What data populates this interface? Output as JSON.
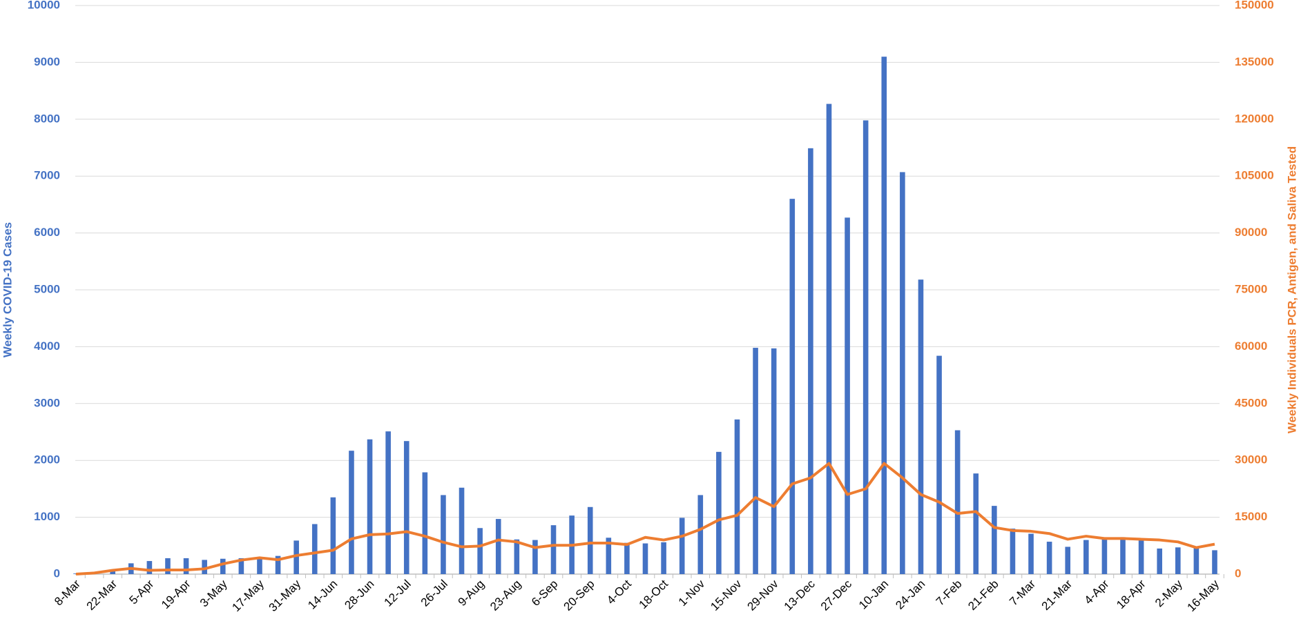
{
  "chart_data": {
    "type": "bar",
    "categories": [
      "8-Mar",
      null,
      "22-Mar",
      null,
      "5-Apr",
      null,
      "19-Apr",
      null,
      "3-May",
      null,
      "17-May",
      null,
      "31-May",
      null,
      "14-Jun",
      null,
      "28-Jun",
      null,
      "12-Jul",
      null,
      "26-Jul",
      null,
      "9-Aug",
      null,
      "23-Aug",
      null,
      "6-Sep",
      null,
      "20-Sep",
      null,
      "4-Oct",
      null,
      "18-Oct",
      null,
      "1-Nov",
      null,
      "15-Nov",
      null,
      "29-Nov",
      null,
      "13-Dec",
      null,
      "27-Dec",
      null,
      "10-Jan",
      null,
      "24-Jan",
      null,
      "7-Feb",
      null,
      "21-Feb",
      null,
      "7-Mar",
      null,
      "21-Mar",
      null,
      "4-Apr",
      null,
      "18-Apr",
      null,
      "2-May",
      null,
      "16-May"
    ],
    "series": [
      {
        "name": "Weekly COVID-19 Cases",
        "color": "#4472c4",
        "type": "bar",
        "values": [
          10,
          20,
          60,
          190,
          230,
          280,
          280,
          250,
          270,
          280,
          300,
          320,
          590,
          880,
          1350,
          2170,
          2370,
          2510,
          2340,
          1790,
          1390,
          1520,
          810,
          970,
          610,
          600,
          860,
          1030,
          1180,
          640,
          550,
          540,
          560,
          990,
          1390,
          2150,
          2720,
          3980,
          3970,
          6600,
          7490,
          8270,
          6270,
          7980,
          9100,
          7070,
          5180,
          3840,
          2530,
          1770,
          1200,
          800,
          710,
          570,
          480,
          600,
          620,
          650,
          620,
          450,
          470,
          490,
          420
        ]
      },
      {
        "name": "Weekly Individuals PCR, Antigen, and Saliva Tested",
        "color": "#ed7d31",
        "type": "line",
        "axis": "y2",
        "values": [
          0,
          300,
          1000,
          1500,
          1000,
          1100,
          1100,
          1400,
          2700,
          3700,
          4300,
          3800,
          4900,
          5600,
          6300,
          9300,
          10400,
          10600,
          11200,
          10000,
          8400,
          7200,
          7400,
          9000,
          8500,
          7000,
          7600,
          7600,
          8200,
          8200,
          7800,
          9700,
          9000,
          10000,
          11800,
          14300,
          15500,
          20200,
          17800,
          23800,
          25400,
          29200,
          21000,
          22500,
          29200,
          25400,
          21000,
          19000,
          16000,
          16500,
          12300,
          11500,
          11300,
          10700,
          9200,
          10000,
          9400,
          9400,
          9200,
          9000,
          8500,
          7000,
          7900
        ]
      }
    ],
    "y_label": "Weekly COVID-19 Cases",
    "y2_label": "Weekly Individuals PCR, Antigen, and Saliva Tested",
    "ylim": [
      0,
      10000
    ],
    "yticks": [
      0,
      1000,
      2000,
      3000,
      4000,
      5000,
      6000,
      7000,
      8000,
      9000,
      10000
    ],
    "y2lim": [
      0,
      150000
    ],
    "y2ticks": [
      0,
      15000,
      30000,
      45000,
      60000,
      75000,
      90000,
      105000,
      120000,
      135000,
      150000
    ],
    "grid": true
  }
}
